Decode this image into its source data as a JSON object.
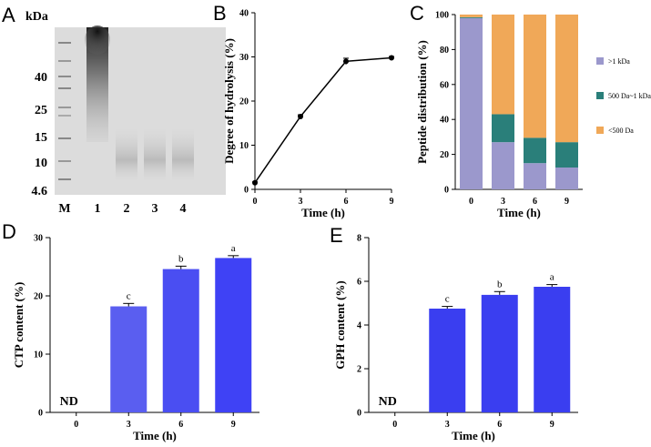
{
  "gel": {
    "panel_label": "A",
    "unit": "kDa",
    "markers": [
      "40",
      "25",
      "15",
      "10",
      "4.6"
    ],
    "lanes": [
      "M",
      "1",
      "2",
      "3",
      "4"
    ]
  },
  "chart_data": [
    {
      "panel_label": "B",
      "type": "line",
      "xlabel": "Time (h)",
      "ylabel": "Degree of hydrolysis (%)",
      "x": [
        0,
        3,
        6,
        9
      ],
      "y": [
        1.5,
        16.5,
        29.0,
        29.8
      ],
      "err": [
        0.2,
        0.4,
        0.7,
        0.3
      ],
      "xlim": [
        0,
        9
      ],
      "ylim": [
        0,
        40
      ],
      "xticks": [
        "0",
        "3",
        "6",
        "9"
      ],
      "yticks": [
        "0",
        "10",
        "20",
        "30",
        "40"
      ],
      "color": "#000000"
    },
    {
      "panel_label": "C",
      "type": "bar",
      "stacked": true,
      "xlabel": "Time (h)",
      "ylabel": "Peptide distribution (%)",
      "categories": [
        "0",
        "3",
        "6",
        "9"
      ],
      "yticks": [
        "0",
        "20",
        "40",
        "60",
        "80",
        "100"
      ],
      "ylim": [
        0,
        100
      ],
      "legend_position": "right",
      "series": [
        {
          "name": ">1 kDa",
          "color": "#9b98cc",
          "values": [
            98,
            27,
            15,
            12.5
          ]
        },
        {
          "name": "500 Da~1 kDa",
          "color": "#2a7f7a",
          "values": [
            0.5,
            16,
            14.5,
            14.5
          ]
        },
        {
          "name": "<500 Da",
          "color": "#f0a858",
          "values": [
            1.5,
            57,
            70.5,
            73
          ]
        }
      ]
    },
    {
      "panel_label": "D",
      "type": "bar",
      "xlabel": "Time (h)",
      "ylabel": "CTP content  (%)",
      "categories": [
        "0",
        "3",
        "6",
        "9"
      ],
      "values": [
        0,
        18.2,
        24.6,
        26.5
      ],
      "err": [
        0,
        0.5,
        0.5,
        0.4
      ],
      "labels": [
        "ND",
        "c",
        "b",
        "a"
      ],
      "ylim": [
        0,
        30
      ],
      "yticks": [
        "0",
        "10",
        "20",
        "30"
      ],
      "colors": [
        "#5a5ef0",
        "#5a5ef0",
        "#4a4ef2",
        "#3f42f5"
      ]
    },
    {
      "panel_label": "E",
      "type": "bar",
      "xlabel": "Time (h)",
      "ylabel": "GPH content (%)",
      "categories": [
        "0",
        "3",
        "6",
        "9"
      ],
      "values": [
        0,
        4.75,
        5.38,
        5.75
      ],
      "err": [
        0,
        0.1,
        0.15,
        0.1
      ],
      "labels": [
        "ND",
        "c",
        "b",
        "a"
      ],
      "ylim": [
        0,
        8
      ],
      "yticks": [
        "0",
        "2",
        "4",
        "6",
        "8"
      ],
      "colors": [
        "#3a3ef0",
        "#3a3ef0",
        "#3a3ef0",
        "#3a3ef0"
      ]
    }
  ]
}
